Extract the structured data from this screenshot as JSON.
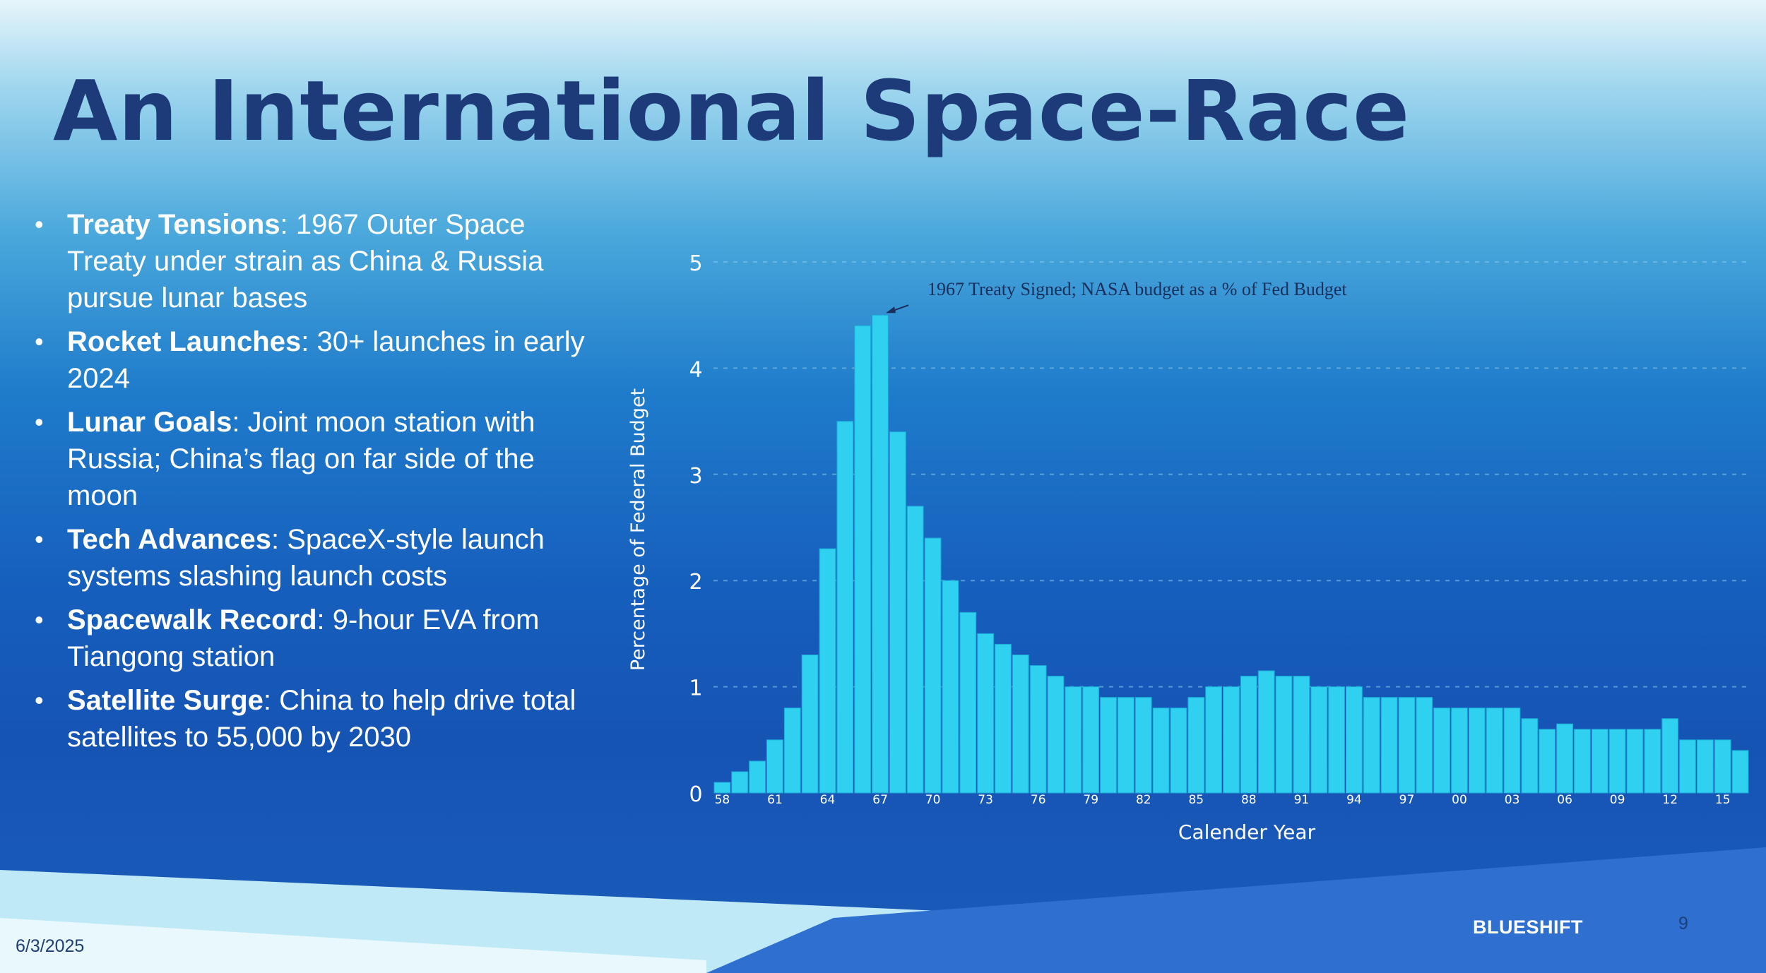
{
  "slide": {
    "title": "An International Space-Race",
    "date": "6/3/2025",
    "brand": "BLUESHIFT",
    "page_number": "9",
    "bullets": [
      {
        "head": "Treaty Tensions",
        "text": ": 1967 Outer Space Treaty under strain as China & Russia pursue lunar bases"
      },
      {
        "head": "Rocket Launches",
        "text": ": 30+ launches in early 2024"
      },
      {
        "head": "Lunar Goals",
        "text": ": Joint moon station with Russia; China’s flag on far side of the moon"
      },
      {
        "head": "Tech Advances",
        "text": ": SpaceX-style launch systems slashing launch costs"
      },
      {
        "head": "Spacewalk Record",
        "text": ": 9-hour EVA from Tiangong station"
      },
      {
        "head": "Satellite Surge",
        "text": ": China to help drive total satellites to 55,000 by 2030"
      }
    ]
  },
  "chart_data": {
    "type": "bar",
    "title": "",
    "annotation": "1967 Treaty Signed;  NASA budget as a % of Fed Budget",
    "annotation_category": "67",
    "xlabel": "Calender Year",
    "ylabel": "Percentage of Federal Budget",
    "ylim": [
      0,
      5
    ],
    "yticks": [
      0,
      1,
      2,
      3,
      4,
      5
    ],
    "grid": "horizontal dashed",
    "colors": {
      "bar": "#2fd0f0",
      "bar_edge": "#1aa9d6",
      "axis_text": "#ffffff",
      "annotation_text": "#1a2f5a"
    },
    "xtick_labels": [
      "58",
      "61",
      "64",
      "67",
      "70",
      "73",
      "76",
      "79",
      "82",
      "85",
      "88",
      "91",
      "94",
      "97",
      "00",
      "03",
      "06",
      "09",
      "12",
      "15"
    ],
    "categories": [
      "58",
      "59",
      "60",
      "61",
      "62",
      "63",
      "64",
      "65",
      "66",
      "67",
      "68",
      "69",
      "70",
      "71",
      "72",
      "73",
      "74",
      "75",
      "76",
      "77",
      "78",
      "79",
      "80",
      "81",
      "82",
      "83",
      "84",
      "85",
      "86",
      "87",
      "88",
      "89",
      "90",
      "91",
      "92",
      "93",
      "94",
      "95",
      "96",
      "97",
      "98",
      "99",
      "00",
      "01",
      "02",
      "03",
      "04",
      "05",
      "06",
      "07",
      "08",
      "09",
      "10",
      "11",
      "12",
      "13",
      "14",
      "15",
      "16"
    ],
    "values": [
      0.1,
      0.2,
      0.3,
      0.5,
      0.8,
      1.3,
      2.3,
      3.5,
      4.4,
      4.5,
      3.4,
      2.7,
      2.4,
      2.0,
      1.7,
      1.5,
      1.4,
      1.3,
      1.2,
      1.1,
      1.0,
      1.0,
      0.9,
      0.9,
      0.9,
      0.8,
      0.8,
      0.9,
      1.0,
      1.0,
      1.1,
      1.15,
      1.1,
      1.1,
      1.0,
      1.0,
      1.0,
      0.9,
      0.9,
      0.9,
      0.9,
      0.8,
      0.8,
      0.8,
      0.8,
      0.8,
      0.7,
      0.6,
      0.65,
      0.6,
      0.6,
      0.6,
      0.6,
      0.6,
      0.7,
      0.5,
      0.5,
      0.5,
      0.4
    ]
  }
}
